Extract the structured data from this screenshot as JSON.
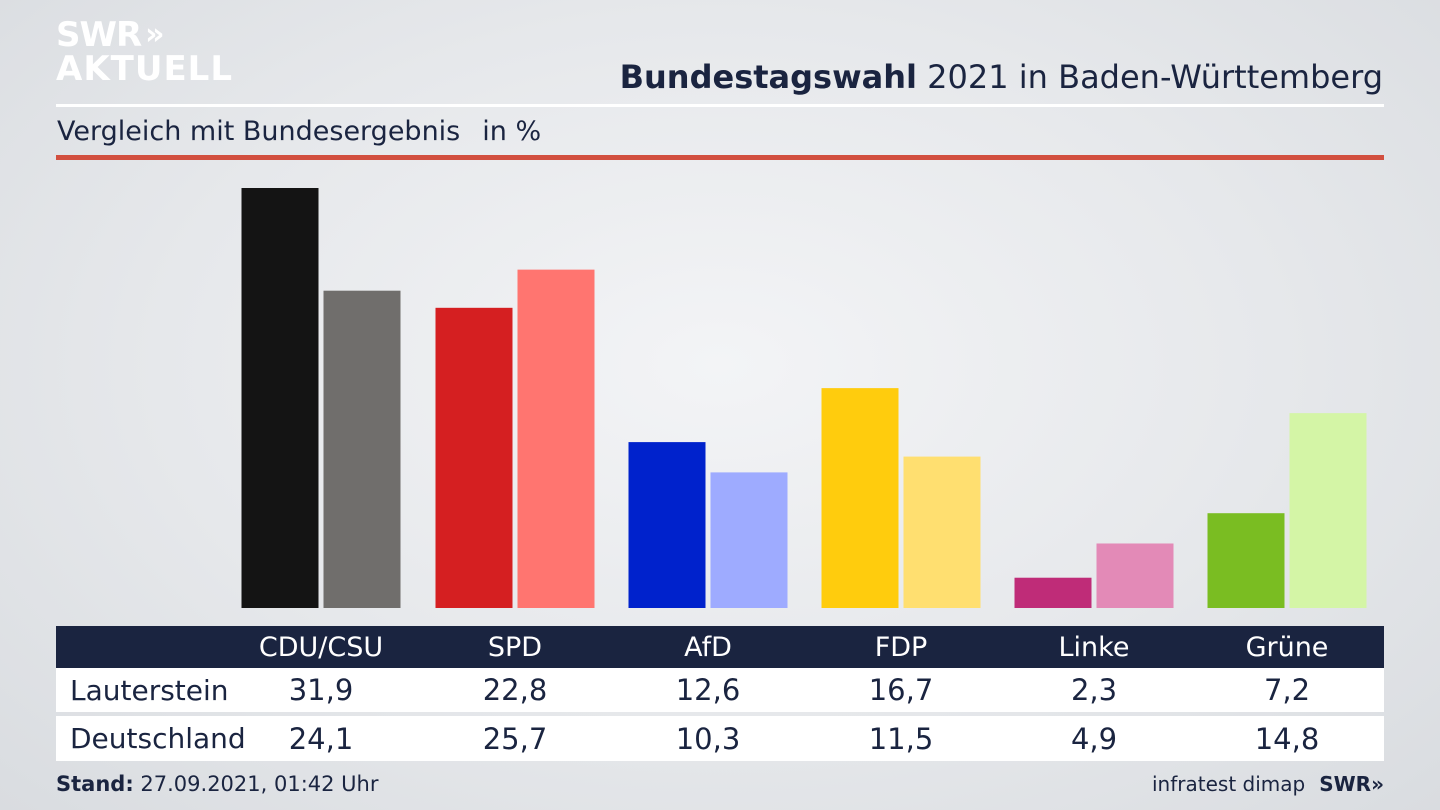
{
  "logo": {
    "line1": "SWR",
    "line2": "AKTUELL",
    "chevrons": "»"
  },
  "header": {
    "title_bold": "Bundestagswahl",
    "title_rest": " 2021 in Baden-Württemberg",
    "subtitle": "Vergleich mit Bundesergebnis",
    "unit": "in %"
  },
  "table": {
    "rows": [
      {
        "label": "Lauterstein",
        "values": [
          "31,9",
          "22,8",
          "12,6",
          "16,7",
          "2,3",
          "7,2"
        ]
      },
      {
        "label": "Deutschland",
        "values": [
          "24,1",
          "25,7",
          "10,3",
          "11,5",
          "4,9",
          "14,8"
        ]
      }
    ]
  },
  "footer": {
    "stand_label": "Stand:",
    "stand_value": " 27.09.2021, 01:42 Uhr",
    "source": "infratest dimap",
    "brand": "SWR»"
  },
  "chart_data": {
    "type": "bar",
    "title": "Bundestagswahl 2021 in Baden-Württemberg",
    "subtitle": "Vergleich mit Bundesergebnis",
    "ylabel": "in %",
    "ylim": [
      0,
      31.9
    ],
    "categories": [
      "CDU/CSU",
      "SPD",
      "AfD",
      "FDP",
      "Linke",
      "Grüne"
    ],
    "series": [
      {
        "name": "Lauterstein",
        "values": [
          31.9,
          22.8,
          12.6,
          16.7,
          2.3,
          7.2
        ],
        "colors": [
          "#141414",
          "#d51f21",
          "#0022cc",
          "#ffcc0d",
          "#bf2c78",
          "#7abd22"
        ]
      },
      {
        "name": "Deutschland",
        "values": [
          24.1,
          25.7,
          10.3,
          11.5,
          4.9,
          14.8
        ],
        "colors": [
          "#706e6c",
          "#ff7570",
          "#9eabff",
          "#ffdf70",
          "#e38ab7",
          "#d4f5a6"
        ]
      }
    ],
    "legend": "table-below",
    "grid": false
  }
}
